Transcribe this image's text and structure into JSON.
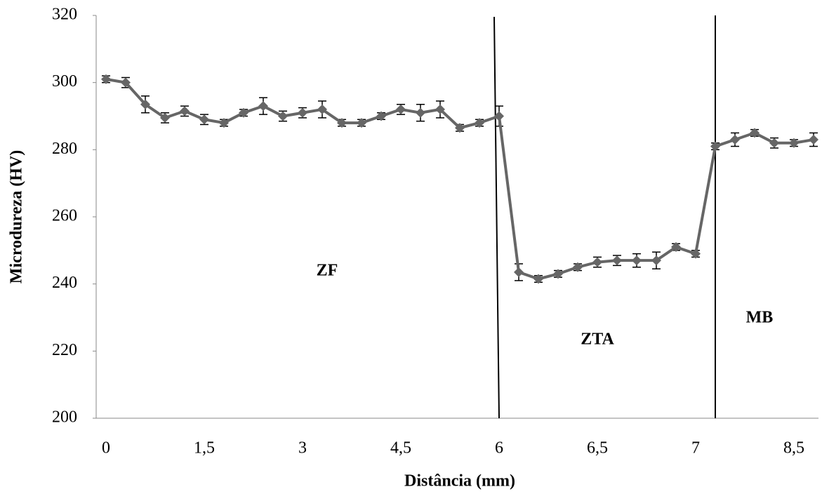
{
  "chart_data": {
    "type": "line",
    "x_label": "Distância (mm)",
    "y_label": "Microdureza (HV)",
    "categories": [
      "0",
      null,
      null,
      null,
      null,
      "1,5",
      null,
      null,
      null,
      null,
      "3",
      null,
      null,
      null,
      null,
      "4,5",
      null,
      null,
      null,
      null,
      "6",
      null,
      null,
      null,
      null,
      "6,5",
      null,
      null,
      null,
      null,
      "7",
      null,
      null,
      null,
      null,
      "8,5",
      null
    ],
    "values": [
      301,
      300,
      293.5,
      289.5,
      291.5,
      289,
      288,
      291,
      293,
      290,
      291,
      292,
      288,
      288,
      290,
      292,
      291,
      292,
      286.5,
      288,
      290,
      243.5,
      241.5,
      243,
      245,
      246.5,
      247,
      247,
      247,
      251,
      249,
      281,
      283,
      285,
      282,
      282,
      283
    ],
    "errors": [
      1,
      1.5,
      2.5,
      1.5,
      1.5,
      1.5,
      1,
      1,
      2.5,
      1.5,
      1.5,
      2.5,
      1,
      1,
      1,
      1.5,
      2.5,
      2.5,
      1,
      1,
      3,
      2.5,
      1,
      1,
      1,
      1.5,
      1.5,
      2,
      2.5,
      1,
      1,
      1,
      2,
      1,
      1.5,
      1,
      2
    ],
    "color": "#666666",
    "ylim": [
      200,
      320
    ],
    "yticks": [
      200,
      220,
      240,
      260,
      280,
      300,
      320
    ],
    "annotations": [
      "ZF",
      "ZTA",
      "MB"
    ]
  }
}
